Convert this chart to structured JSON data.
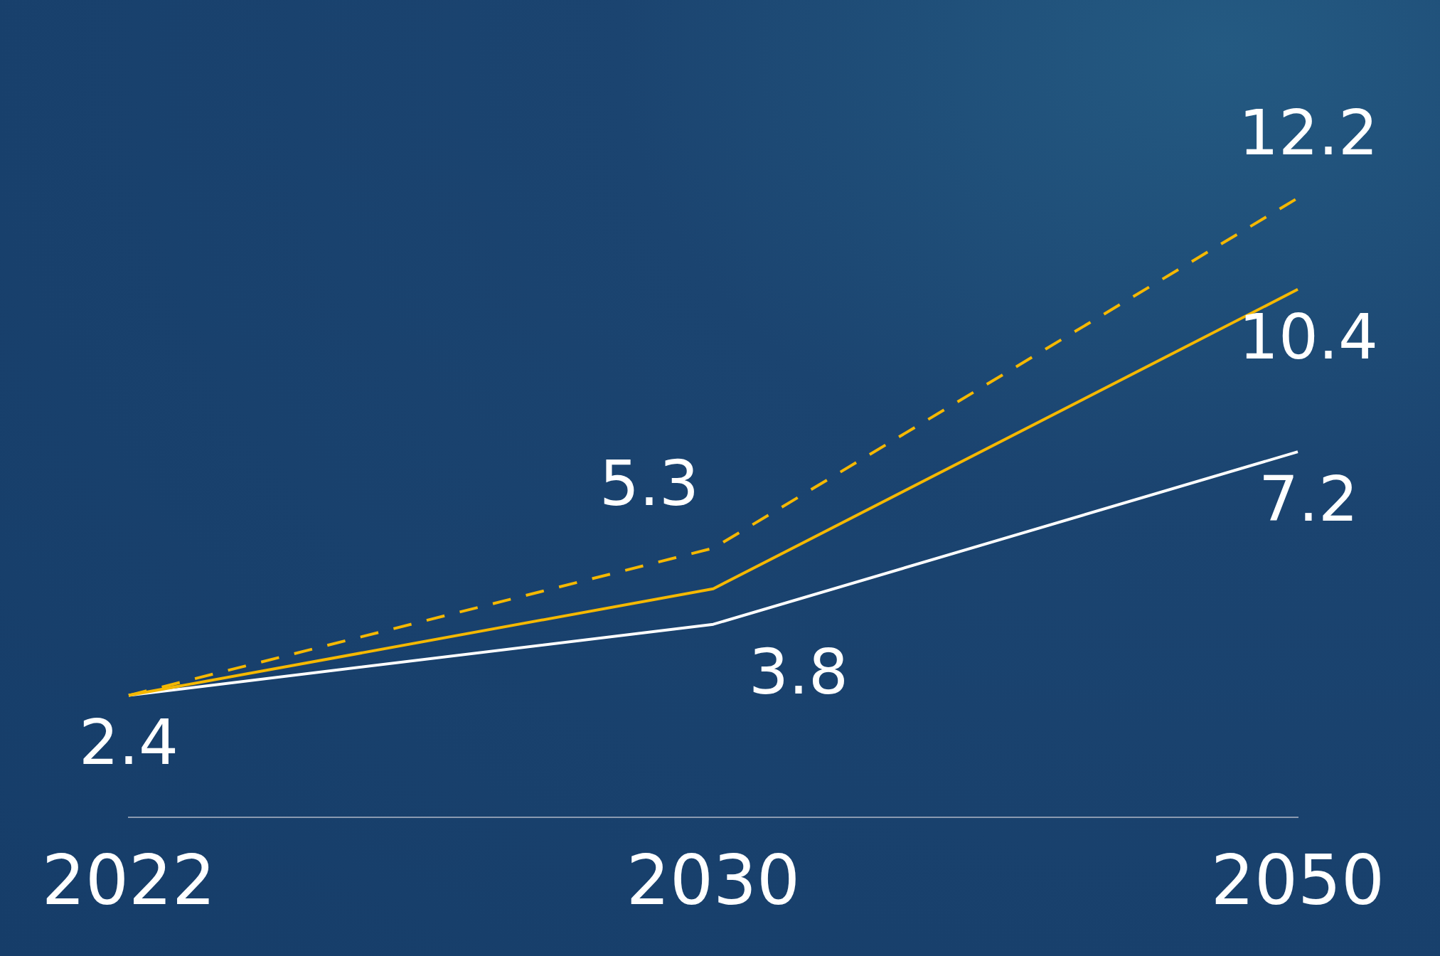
{
  "chart_data": {
    "type": "line",
    "categories": [
      "2022",
      "2030",
      "2050"
    ],
    "series": [
      {
        "color": "#f5b800",
        "line_style": "dashed",
        "values": [
          2.4,
          5.3,
          12.2
        ],
        "value_labels": [
          null,
          "5.3",
          "12.2"
        ]
      },
      {
        "color": "#f5b800",
        "line_style": "solid",
        "values": [
          2.4,
          4.5,
          10.4
        ],
        "value_labels": [
          null,
          null,
          "10.4"
        ]
      },
      {
        "color": "#ffffff",
        "line_style": "solid",
        "values": [
          2.4,
          3.8,
          7.2
        ],
        "value_labels": [
          "2.4",
          "3.8",
          "7.2"
        ]
      }
    ],
    "grid": false,
    "legend": false,
    "marker": "none",
    "tick_labels": "x"
  }
}
